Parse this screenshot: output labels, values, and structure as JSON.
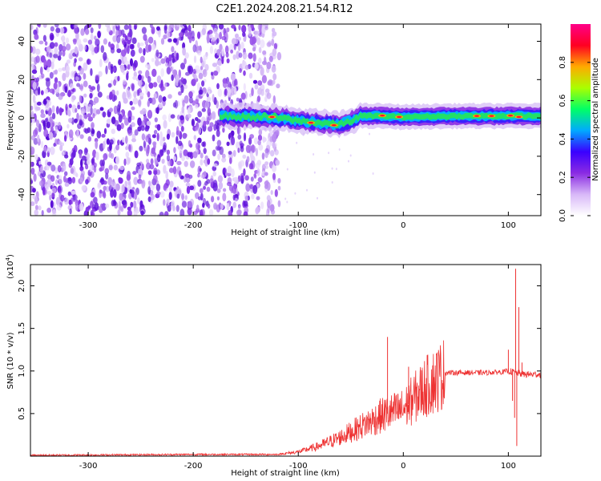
{
  "title": "C2E1.2024.208.21.54.R12",
  "colors": {
    "axis": "#000000",
    "line": "#ee3333",
    "background": "#ffffff"
  },
  "chart_data": [
    {
      "type": "heatmap",
      "name": "spectrogram",
      "xlabel": "Height of straight line (km)",
      "ylabel": "Frequency (Hz)",
      "xlim": [
        -355,
        131
      ],
      "ylim": [
        -51,
        49
      ],
      "xticks": [
        -300,
        -200,
        -100,
        0,
        100
      ],
      "yticks": [
        -40,
        -20,
        0,
        20,
        40
      ],
      "xtick_labels": [
        "-300",
        "-200",
        "-100",
        "0",
        "100"
      ],
      "ytick_labels": [
        "-40",
        "-20",
        "0",
        "20",
        "40"
      ],
      "noise_region_x": [
        -355,
        -118
      ],
      "signal_band": [
        {
          "x": -175,
          "y": 1.0
        },
        {
          "x": -150,
          "y": 0.5
        },
        {
          "x": -125,
          "y": 0.5
        },
        {
          "x": -100,
          "y": -1.5
        },
        {
          "x": -80,
          "y": -2.5
        },
        {
          "x": -60,
          "y": -3.5
        },
        {
          "x": -50,
          "y": -1.5
        },
        {
          "x": -40,
          "y": 1.0
        },
        {
          "x": -20,
          "y": 1.0
        },
        {
          "x": 0,
          "y": 0.5
        },
        {
          "x": 50,
          "y": 1.0
        },
        {
          "x": 100,
          "y": 1.0
        },
        {
          "x": 131,
          "y": 1.0
        }
      ],
      "colorbar": {
        "label": "Normalized spectral amplitude",
        "range": [
          0,
          1
        ],
        "ticks": [
          0.0,
          0.2,
          0.4,
          0.6,
          0.8
        ],
        "tick_labels": [
          "0.0",
          "0.2",
          "0.4",
          "0.6",
          "0.8"
        ],
        "colormap": [
          "#ffffff",
          "#d8b8f8",
          "#8a2be2",
          "#3a00ff",
          "#00aaff",
          "#00ff66",
          "#aaff00",
          "#ffaa00",
          "#ff0022",
          "#ff0088"
        ]
      }
    },
    {
      "type": "line",
      "name": "snr",
      "xlabel": "Height of straight line (km)",
      "ylabel": "SNR (10 * v/v)",
      "exponent_label": "(x10",
      "exponent_value": "4",
      "exponent_close": ")",
      "xlim": [
        -355,
        131
      ],
      "ylim": [
        0,
        2.25
      ],
      "xticks": [
        -300,
        -200,
        -100,
        0,
        100
      ],
      "yticks": [
        0.5,
        1.0,
        1.5,
        2.0
      ],
      "xtick_labels": [
        "-300",
        "-200",
        "-100",
        "0",
        "100"
      ],
      "ytick_labels": [
        "0.5",
        "1.0",
        "1.5",
        "2.0"
      ],
      "envelope": [
        {
          "x": -355,
          "y": 0.01
        },
        {
          "x": -200,
          "y": 0.02
        },
        {
          "x": -120,
          "y": 0.02
        },
        {
          "x": -100,
          "y": 0.05
        },
        {
          "x": -80,
          "y": 0.12
        },
        {
          "x": -60,
          "y": 0.22
        },
        {
          "x": -40,
          "y": 0.35
        },
        {
          "x": -20,
          "y": 0.48
        },
        {
          "x": 0,
          "y": 0.55
        },
        {
          "x": 20,
          "y": 0.8
        },
        {
          "x": 40,
          "y": 0.98
        },
        {
          "x": 60,
          "y": 0.98
        },
        {
          "x": 80,
          "y": 0.98
        },
        {
          "x": 95,
          "y": 0.99
        },
        {
          "x": 100,
          "y": 1.0
        },
        {
          "x": 115,
          "y": 0.96
        },
        {
          "x": 131,
          "y": 0.96
        }
      ],
      "spikes": [
        {
          "x": -15,
          "y": 1.4
        },
        {
          "x": 5,
          "y": 1.05
        },
        {
          "x": 100,
          "y": 1.25
        },
        {
          "x": 104,
          "y": 0.65
        },
        {
          "x": 106,
          "y": 0.45
        },
        {
          "x": 107,
          "y": 2.2
        },
        {
          "x": 108,
          "y": 0.12
        },
        {
          "x": 110,
          "y": 1.75
        },
        {
          "x": 113,
          "y": 1.1
        }
      ]
    }
  ]
}
